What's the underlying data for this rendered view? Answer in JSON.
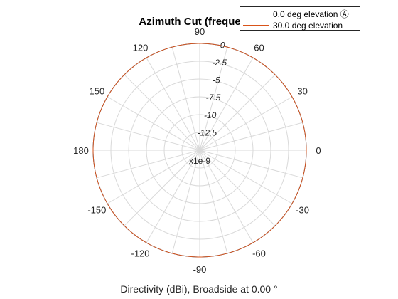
{
  "chart_data": {
    "type": "polar",
    "title": "Azimuth Cut (frequency",
    "caption": "Directivity (dBi), Broadside at 0.00 °",
    "angle_ticks": [
      "0",
      "30",
      "60",
      "90",
      "120",
      "150",
      "180",
      "-150",
      "-120",
      "-90",
      "-60",
      "-30"
    ],
    "angle_tick_degrees": [
      0,
      30,
      60,
      90,
      120,
      150,
      180,
      -150,
      -120,
      -90,
      -60,
      -30
    ],
    "radial_ticks": [
      "0",
      "-2.5",
      "-5",
      "-7.5",
      "-10",
      "-12.5"
    ],
    "radial_tick_values": [
      0,
      -2.5,
      -5,
      -7.5,
      -10,
      -12.5
    ],
    "radial_range": [
      -15,
      0
    ],
    "radial_scale_label": "x1e-9",
    "grid": true,
    "legend_position": "top-right",
    "series": [
      {
        "name": "0.0 deg elevation Ⓐ",
        "color": "#0072bd",
        "angles_deg": [
          -180,
          180
        ],
        "values": [
          0,
          0
        ]
      },
      {
        "name": "30.0 deg elevation",
        "color": "#d95319",
        "angles_deg": [
          -180,
          180
        ],
        "values": [
          0,
          0
        ]
      }
    ]
  }
}
